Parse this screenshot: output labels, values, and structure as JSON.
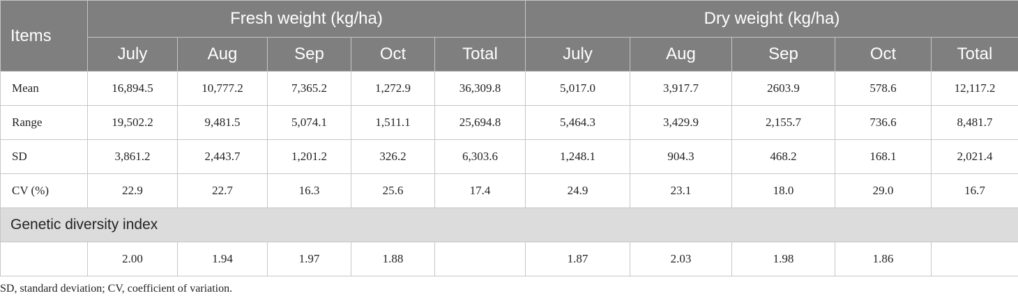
{
  "table": {
    "items_header": "Items",
    "group_headers": [
      "Fresh weight (kg/ha)",
      "Dry weight (kg/ha)"
    ],
    "sub_headers": [
      "July",
      "Aug",
      "Sep",
      "Oct",
      "Total",
      "July",
      "Aug",
      "Sep",
      "Oct",
      "Total"
    ],
    "rows": [
      {
        "label": "Mean",
        "values": [
          "16,894.5",
          "10,777.2",
          "7,365.2",
          "1,272.9",
          "36,309.8",
          "5,017.0",
          "3,917.7",
          "2603.9",
          "578.6",
          "12,117.2"
        ]
      },
      {
        "label": "Range",
        "values": [
          "19,502.2",
          "9,481.5",
          "5,074.1",
          "1,511.1",
          "25,694.8",
          "5,464.3",
          "3,429.9",
          "2,155.7",
          "736.6",
          "8,481.7"
        ]
      },
      {
        "label": "SD",
        "values": [
          "3,861.2",
          "2,443.7",
          "1,201.2",
          "326.2",
          "6,303.6",
          "1,248.1",
          "904.3",
          "468.2",
          "168.1",
          "2,021.4"
        ]
      },
      {
        "label": "CV (%)",
        "values": [
          "22.9",
          "22.7",
          "16.3",
          "25.6",
          "17.4",
          "24.9",
          "23.1",
          "18.0",
          "29.0",
          "16.7"
        ]
      }
    ],
    "section_title": "Genetic diversity index",
    "gdi_row": {
      "label": "",
      "values": [
        "2.00",
        "1.94",
        "1.97",
        "1.88",
        "",
        "1.87",
        "2.03",
        "1.98",
        "1.86",
        ""
      ]
    }
  },
  "footnote": "SD, standard deviation; CV, coefficient of variation.",
  "colors": {
    "header_bg": "#7f7f7f",
    "section_bg": "#dcdcdc",
    "border": "#c6c6c6"
  }
}
